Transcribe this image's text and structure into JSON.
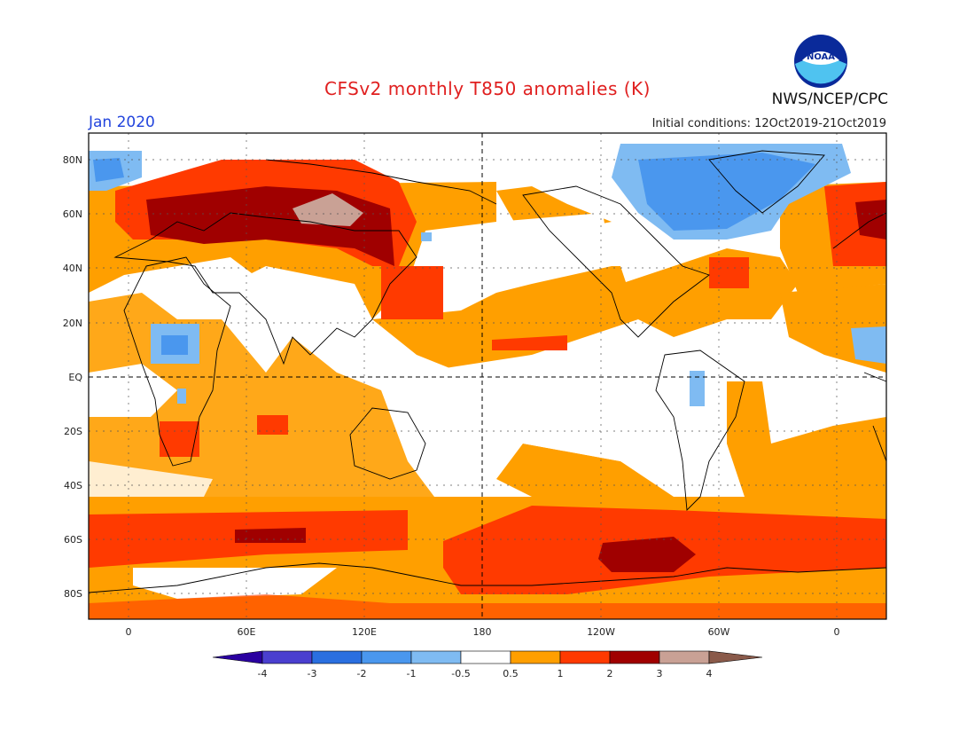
{
  "header": {
    "title": "CFSv2 monthly T850 anomalies (K)",
    "month": "Jan 2020",
    "initial_conditions": "Initial conditions: 12Oct2019-21Oct2019",
    "org": "NWS/NCEP/CPC",
    "logo_text": "NOAA"
  },
  "axes": {
    "lat_labels": [
      "80N",
      "60N",
      "40N",
      "20N",
      "EQ",
      "20S",
      "40S",
      "60S",
      "80S"
    ],
    "lon_labels": [
      "0",
      "60E",
      "120E",
      "180",
      "120W",
      "60W",
      "0"
    ]
  },
  "colorbar": {
    "labels": [
      "-4",
      "-3",
      "-2",
      "-1",
      "-0.5",
      "0.5",
      "1",
      "2",
      "3",
      "4"
    ],
    "colors": [
      "#2a00a0",
      "#4a3fcf",
      "#2a6fe0",
      "#4a97ee",
      "#7fbbf2",
      "#ffffff",
      "#ff9f00",
      "#ff3a00",
      "#a00000",
      "#c9a195",
      "#8a5a4a"
    ]
  },
  "colors": {
    "land": "#ffffff",
    "warm1": "#ff9f00",
    "warm2": "#ff3a00",
    "warm3": "#a00000",
    "warm4": "#c9a195",
    "cold1": "#7fbbf2",
    "cold2": "#4a97ee",
    "title": "#e02020",
    "month": "#2244dd"
  }
}
